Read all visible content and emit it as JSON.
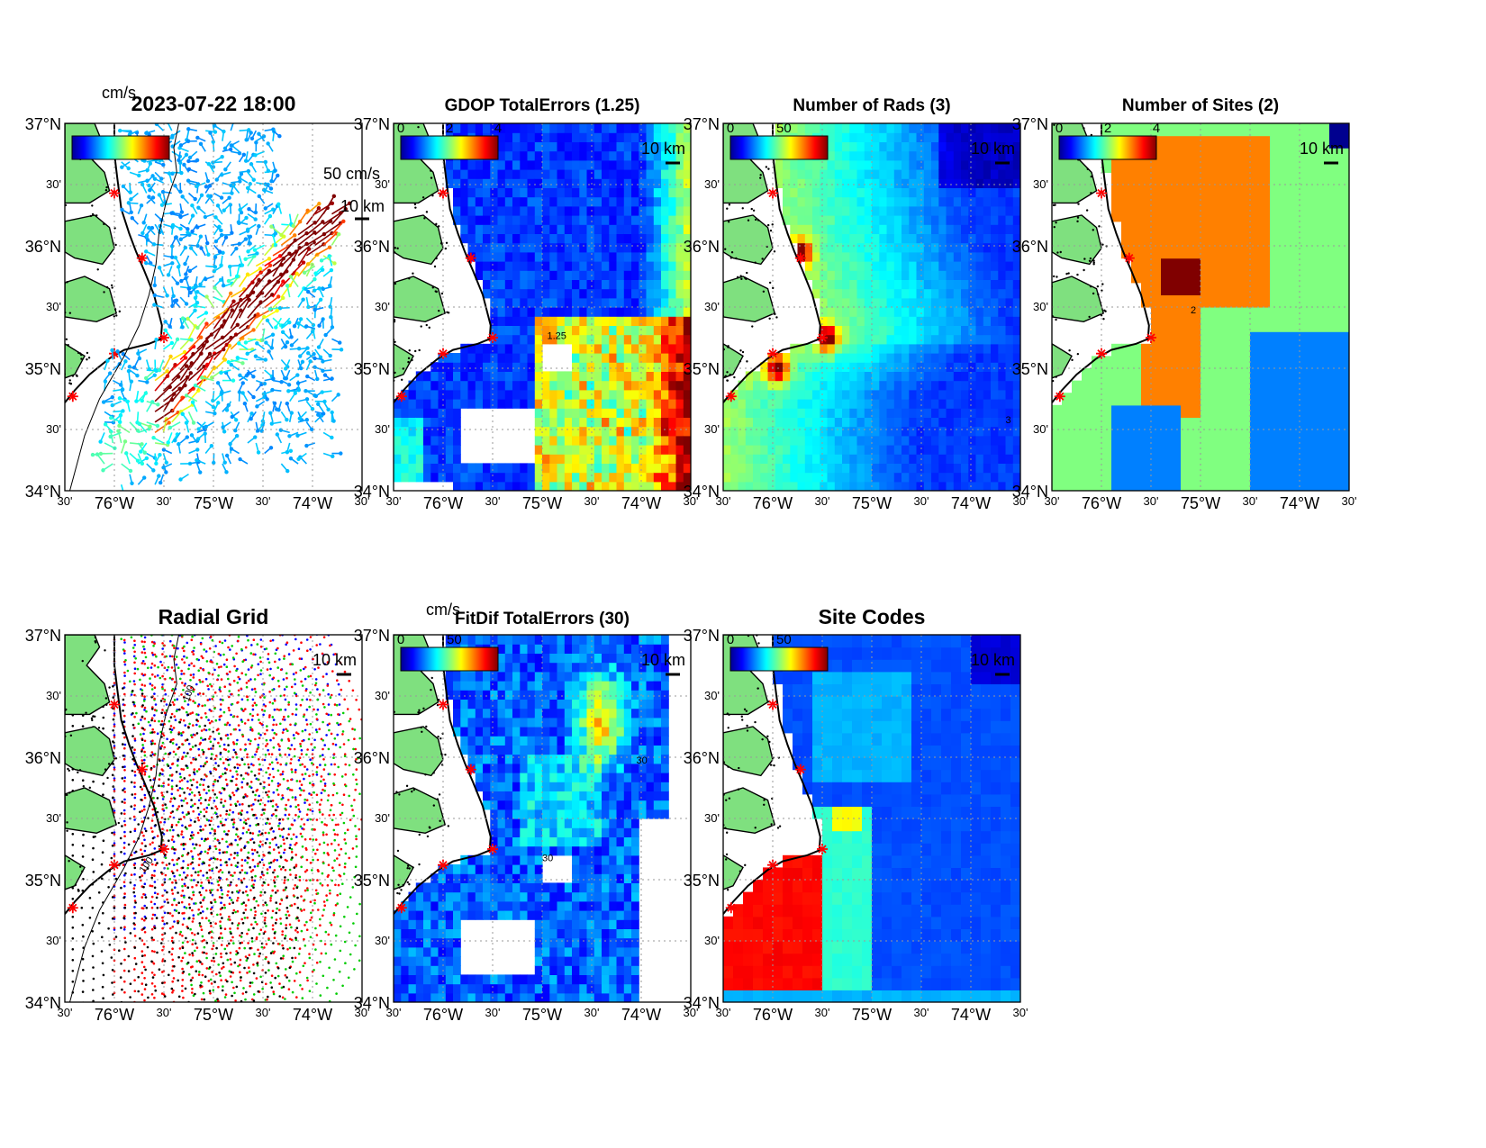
{
  "figure": {
    "timestamp": "2023-07-22 18:00",
    "scale_bar_label": "10 km",
    "vector_scale_label": "50 cm/s",
    "colorbar_unit": "cm/s",
    "lat_ticks": [
      "37°N",
      "30'",
      "36°N",
      "30'",
      "35°N",
      "30'",
      "34°N"
    ],
    "lon_ticks": [
      "30'",
      "76°W",
      "30'",
      "75°W",
      "30'",
      "74°W",
      "30'"
    ],
    "colors": {
      "land": "#7fe07f",
      "coast": "#000000",
      "site_marker": "#ff0000",
      "grid": "#9a9a9a",
      "jet": [
        "#00008f",
        "#0000ff",
        "#0080ff",
        "#00ffff",
        "#80ff80",
        "#ffff00",
        "#ff8000",
        "#ff0000",
        "#800000"
      ]
    }
  },
  "panels": [
    {
      "id": "currents",
      "title": "2023-07-22 18:00",
      "colorbar": {
        "unit": "cm/s",
        "ticks": []
      },
      "vector_scale": "50 cm/s",
      "scale_bar": "10 km"
    },
    {
      "id": "gdop",
      "title": "GDOP TotalErrors (1.25)",
      "colorbar": {
        "ticks": [
          "0",
          "2",
          "4"
        ]
      },
      "contour_level": "1.25",
      "scale_bar": "10 km"
    },
    {
      "id": "nrads",
      "title": "Number of Rads (3)",
      "colorbar": {
        "ticks": [
          "0",
          "50"
        ]
      },
      "contour_level": "3",
      "scale_bar": "10 km"
    },
    {
      "id": "nsites",
      "title": "Number of Sites (2)",
      "colorbar": {
        "ticks": [
          "0",
          "2",
          "4"
        ]
      },
      "contour_level": "2",
      "scale_bar": "10 km"
    },
    {
      "id": "radial",
      "title": "Radial Grid",
      "contour_level": "100",
      "scale_bar": "10 km"
    },
    {
      "id": "fitdif",
      "title": "FitDif TotalErrors (30)",
      "colorbar": {
        "unit": "cm/s",
        "ticks": [
          "0",
          "50"
        ]
      },
      "contour_level": "30",
      "scale_bar": "10 km"
    },
    {
      "id": "sitecodes",
      "title": "Site Codes",
      "colorbar": {
        "ticks": [
          "0",
          "50"
        ]
      },
      "scale_bar": "10 km"
    }
  ],
  "chart_data": {
    "type": "heatmap",
    "lon_range": [
      -76.5,
      -73.5
    ],
    "lat_range": [
      34.0,
      37.0
    ],
    "radar_sites": [
      {
        "lon": -76.0,
        "lat": 36.43
      },
      {
        "lon": -75.72,
        "lat": 35.9
      },
      {
        "lon": -75.5,
        "lat": 35.25
      },
      {
        "lon": -76.0,
        "lat": 35.12
      },
      {
        "lon": -76.42,
        "lat": 34.77
      }
    ],
    "isobath_label": "100"
  }
}
